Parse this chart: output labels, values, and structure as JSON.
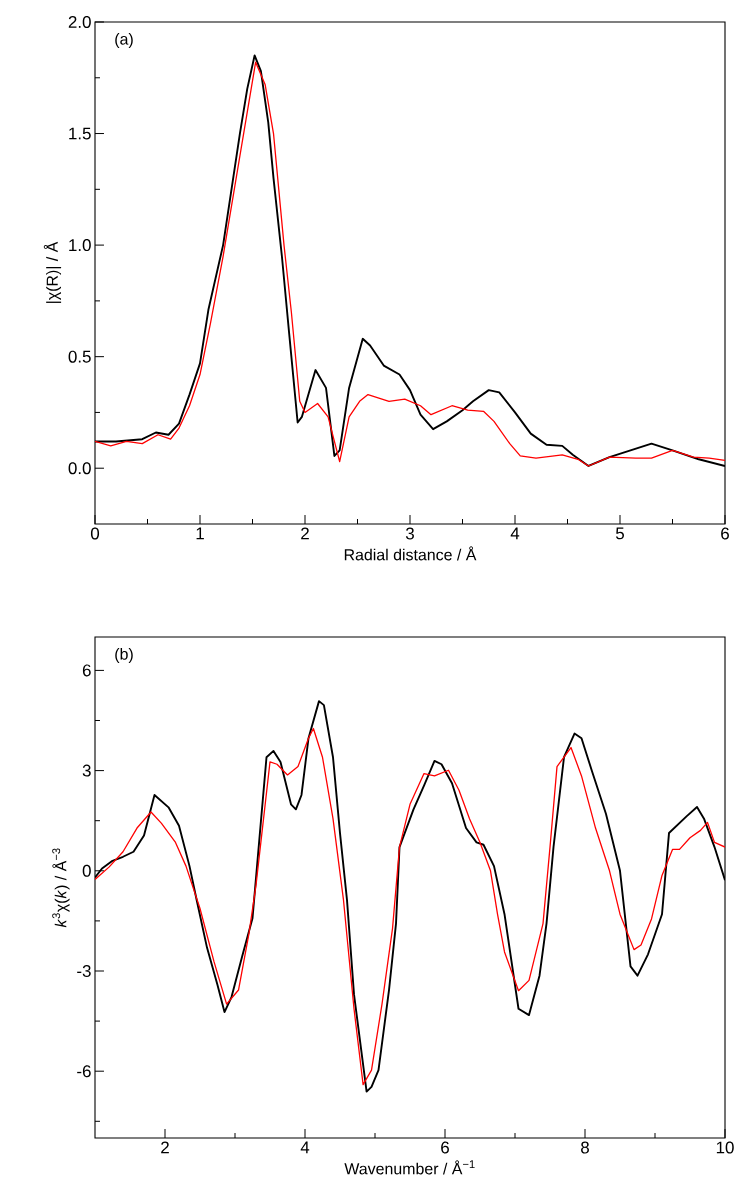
{
  "chart_data": [
    {
      "type": "line",
      "xlabel": "Radial distance / Å",
      "ylabel": "|χ(R)| / Å",
      "annotations": [
        "(a)"
      ],
      "xlim": [
        0,
        6
      ],
      "ylim": [
        -0.25,
        2
      ],
      "xticks": [
        0,
        {
          "value": 0.5,
          "label": null
        },
        1,
        {
          "value": 1.5,
          "label": null
        },
        2,
        {
          "value": 2.5,
          "label": null
        },
        3,
        {
          "value": 3.5,
          "label": null
        },
        4,
        {
          "value": 4.5,
          "label": null
        },
        5,
        {
          "value": 5.5,
          "label": null
        },
        6
      ],
      "yticks": [
        {
          "value": 0,
          "label": "0.0"
        },
        {
          "value": 0.25,
          "label": null
        },
        {
          "value": 0.5,
          "label": "0.5"
        },
        {
          "value": 0.75,
          "label": null
        },
        {
          "value": 1,
          "label": "1.0"
        },
        {
          "value": 1.25,
          "label": null
        },
        {
          "value": 1.5,
          "label": "1.5"
        },
        {
          "value": 1.75,
          "label": null
        },
        {
          "value": 2,
          "label": "2.0"
        }
      ],
      "series": [
        {
          "color": "#000000",
          "x": [
            0,
            0.2,
            0.45,
            0.58,
            0.7,
            0.8,
            0.9,
            1.0,
            1.08,
            1.22,
            1.38,
            1.45,
            1.52,
            1.58,
            1.65,
            1.7,
            1.78,
            1.85,
            1.93,
            1.97,
            2.1,
            2.2,
            2.28,
            2.33,
            2.42,
            2.55,
            2.62,
            2.75,
            2.9,
            3.0,
            3.1,
            3.22,
            3.35,
            3.5,
            3.6,
            3.75,
            3.85,
            4.0,
            4.15,
            4.3,
            4.45,
            4.55,
            4.7,
            4.9,
            5.1,
            5.3,
            5.5,
            5.75,
            6.0
          ],
          "values": [
            0.12,
            0.12,
            0.13,
            0.16,
            0.15,
            0.2,
            0.33,
            0.47,
            0.71,
            1.0,
            1.5,
            1.7,
            1.85,
            1.78,
            1.55,
            1.3,
            0.95,
            0.6,
            0.205,
            0.23,
            0.44,
            0.36,
            0.055,
            0.08,
            0.36,
            0.58,
            0.55,
            0.46,
            0.42,
            0.35,
            0.24,
            0.175,
            0.21,
            0.26,
            0.3,
            0.35,
            0.34,
            0.25,
            0.155,
            0.105,
            0.1,
            0.06,
            0.01,
            0.05,
            0.08,
            0.11,
            0.08,
            0.04,
            0.01
          ]
        },
        {
          "color": "#ff0000",
          "x": [
            0,
            0.15,
            0.3,
            0.45,
            0.6,
            0.72,
            0.8,
            0.9,
            1.0,
            1.1,
            1.22,
            1.38,
            1.53,
            1.62,
            1.7,
            1.8,
            1.87,
            1.95,
            2.0,
            2.12,
            2.22,
            2.28,
            2.33,
            2.42,
            2.52,
            2.6,
            2.8,
            2.95,
            3.1,
            3.2,
            3.4,
            3.55,
            3.7,
            3.8,
            3.95,
            4.05,
            4.2,
            4.45,
            4.6,
            4.7,
            4.9,
            5.15,
            5.3,
            5.5,
            5.7,
            5.85,
            6.0
          ],
          "values": [
            0.12,
            0.1,
            0.12,
            0.11,
            0.15,
            0.13,
            0.18,
            0.28,
            0.42,
            0.65,
            0.95,
            1.4,
            1.82,
            1.72,
            1.5,
            1.0,
            0.7,
            0.3,
            0.25,
            0.29,
            0.23,
            0.12,
            0.03,
            0.23,
            0.3,
            0.33,
            0.3,
            0.31,
            0.28,
            0.24,
            0.28,
            0.26,
            0.255,
            0.21,
            0.11,
            0.055,
            0.045,
            0.06,
            0.04,
            0.01,
            0.05,
            0.045,
            0.045,
            0.08,
            0.05,
            0.045,
            0.035
          ]
        }
      ]
    },
    {
      "type": "line",
      "xlabel": "Wavenumber / Å$^{−1}$",
      "ylabel": "*k*$^{3}$χ(*k*) / Å$^{−3}$",
      "annotations": [
        "(b)"
      ],
      "xlim": [
        1,
        10
      ],
      "ylim": [
        -8,
        7
      ],
      "xticks": [
        2,
        {
          "value": 3,
          "label": null
        },
        4,
        {
          "value": 5,
          "label": null
        },
        6,
        {
          "value": 7,
          "label": null
        },
        8,
        {
          "value": 9,
          "label": null
        },
        10
      ],
      "yticks": [
        {
          "value": -7.5,
          "label": null
        },
        -6,
        {
          "value": -4.5,
          "label": null
        },
        -3,
        {
          "value": -1.5,
          "label": null
        },
        0,
        {
          "value": 1.5,
          "label": null
        },
        3,
        {
          "value": 4.5,
          "label": null
        },
        6
      ],
      "series": [
        {
          "color": "#000000",
          "x": [
            1.0,
            1.1,
            1.25,
            1.4,
            1.55,
            1.7,
            1.85,
            2.05,
            2.2,
            2.35,
            2.45,
            2.6,
            2.75,
            2.85,
            2.95,
            3.1,
            3.25,
            3.45,
            3.55,
            3.65,
            3.8,
            3.87,
            3.95,
            4.05,
            4.2,
            4.27,
            4.4,
            4.5,
            4.6,
            4.7,
            4.88,
            4.95,
            5.05,
            5.2,
            5.3,
            5.35,
            5.55,
            5.7,
            5.85,
            5.95,
            6.1,
            6.3,
            6.45,
            6.55,
            6.7,
            6.85,
            7.05,
            7.2,
            7.35,
            7.45,
            7.55,
            7.7,
            7.85,
            7.95,
            8.1,
            8.3,
            8.5,
            8.65,
            8.75,
            8.9,
            9.1,
            9.2,
            9.45,
            9.6,
            9.7,
            9.85,
            10.0
          ],
          "values": [
            -0.2,
            0.07,
            0.3,
            0.42,
            0.57,
            1.06,
            2.27,
            1.9,
            1.35,
            0.14,
            -0.85,
            -2.3,
            -3.42,
            -4.23,
            -3.78,
            -2.58,
            -1.42,
            3.4,
            3.59,
            3.26,
            1.99,
            1.84,
            2.27,
            3.97,
            5.08,
            4.96,
            3.4,
            1.13,
            -0.88,
            -3.7,
            -6.61,
            -6.47,
            -5.97,
            -3.57,
            -1.58,
            0.71,
            1.84,
            2.55,
            3.29,
            3.19,
            2.62,
            1.28,
            0.85,
            0.78,
            0.14,
            -1.3,
            -4.13,
            -4.32,
            -3.14,
            -1.58,
            0.71,
            3.4,
            4.11,
            3.97,
            2.98,
            1.7,
            0,
            -2.86,
            -3.14,
            -2.5,
            -1.3,
            1.13,
            1.63,
            1.91,
            1.56,
            0.71,
            -0.28
          ]
        },
        {
          "color": "#ff0000",
          "x": [
            1.0,
            1.2,
            1.4,
            1.6,
            1.8,
            1.95,
            2.15,
            2.3,
            2.5,
            2.7,
            2.88,
            3.05,
            3.2,
            3.3,
            3.5,
            3.6,
            3.75,
            3.9,
            4.05,
            4.12,
            4.25,
            4.4,
            4.55,
            4.7,
            4.83,
            4.95,
            5.1,
            5.25,
            5.35,
            5.5,
            5.7,
            5.85,
            6.05,
            6.2,
            6.35,
            6.5,
            6.65,
            6.75,
            6.85,
            7.05,
            7.2,
            7.4,
            7.5,
            7.6,
            7.8,
            7.95,
            8.15,
            8.35,
            8.5,
            8.7,
            8.8,
            8.95,
            9.1,
            9.25,
            9.35,
            9.5,
            9.65,
            9.75,
            9.85,
            10.0
          ],
          "values": [
            -0.26,
            0.11,
            0.57,
            1.28,
            1.76,
            1.42,
            0.85,
            0.14,
            -1.13,
            -2.72,
            -3.99,
            -3.57,
            -1.87,
            -0.43,
            3.26,
            3.19,
            2.87,
            3.12,
            3.97,
            4.26,
            3.4,
            1.56,
            -0.88,
            -4.13,
            -6.4,
            -5.97,
            -3.99,
            -1.73,
            0.71,
            1.99,
            2.91,
            2.84,
            3.01,
            2.41,
            1.56,
            0.85,
            0,
            -1.3,
            -2.43,
            -3.59,
            -3.28,
            -1.58,
            0.71,
            3.12,
            3.69,
            2.84,
            1.28,
            0,
            -1.3,
            -2.36,
            -2.22,
            -1.44,
            -0.14,
            0.64,
            0.64,
            0.99,
            1.21,
            1.45,
            0.85,
            0.71
          ]
        }
      ]
    }
  ]
}
